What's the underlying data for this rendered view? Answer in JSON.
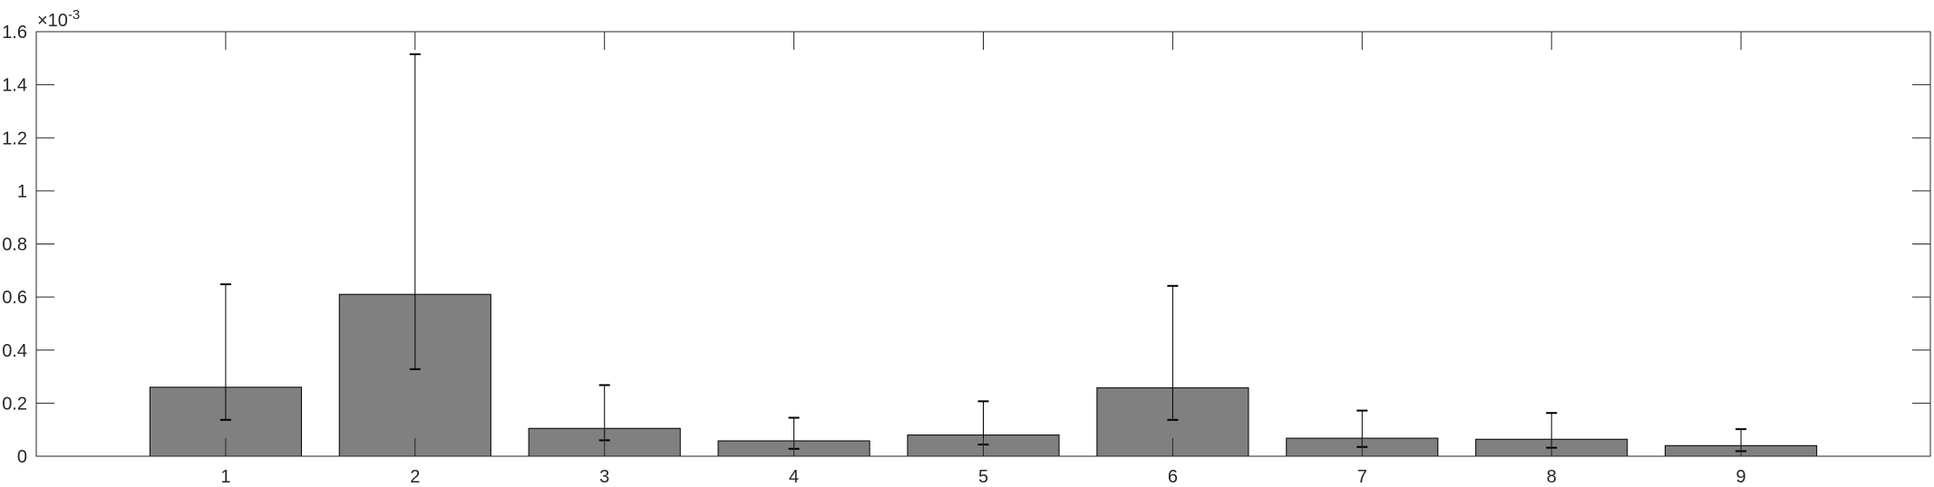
{
  "chart_data": {
    "type": "bar",
    "title": "",
    "xlabel": "",
    "ylabel": "",
    "exponent_label": "×10",
    "exponent_power": "-3",
    "categories": [
      "1",
      "2",
      "3",
      "4",
      "5",
      "6",
      "7",
      "8",
      "9"
    ],
    "values": [
      0.26,
      0.61,
      0.105,
      0.058,
      0.08,
      0.258,
      0.068,
      0.064,
      0.04
    ],
    "error_lower": [
      0.137,
      0.328,
      0.06,
      0.028,
      0.044,
      0.137,
      0.035,
      0.032,
      0.019
    ],
    "error_upper": [
      0.648,
      1.515,
      0.268,
      0.145,
      0.207,
      0.642,
      0.172,
      0.163,
      0.102
    ],
    "value_scale": "x10^-3",
    "xlim": [
      0,
      10
    ],
    "ylim": [
      0,
      1.6
    ],
    "yticks": [
      0,
      0.2,
      0.4,
      0.6,
      0.8,
      1,
      1.2,
      1.4,
      1.6
    ],
    "ytick_labels": [
      "0",
      "0.2",
      "0.4",
      "0.6",
      "0.8",
      "1",
      "1.2",
      "1.4",
      "1.6"
    ],
    "grid": false,
    "legend": "none",
    "colors": {
      "bar_fill": "#808080",
      "bar_edge": "#000000",
      "axis": "#262626",
      "error_bar": "#000000"
    }
  }
}
